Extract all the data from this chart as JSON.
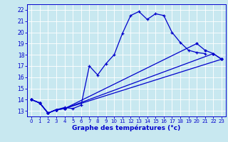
{
  "title": "Graphe des températures (°c)",
  "bg_color": "#c8e8f0",
  "line_color": "#0000cc",
  "grid_color": "#ffffff",
  "xlim": [
    -0.5,
    23.5
  ],
  "ylim": [
    12.5,
    22.5
  ],
  "xticks": [
    0,
    1,
    2,
    3,
    4,
    5,
    6,
    7,
    8,
    9,
    10,
    11,
    12,
    13,
    14,
    15,
    16,
    17,
    18,
    19,
    20,
    21,
    22,
    23
  ],
  "yticks": [
    13,
    14,
    15,
    16,
    17,
    18,
    19,
    20,
    21,
    22
  ],
  "line1_x": [
    0,
    1,
    2,
    3,
    4,
    5,
    6,
    7,
    8,
    9,
    10,
    11,
    12,
    13,
    14,
    15,
    16,
    17,
    18,
    19,
    20,
    21
  ],
  "line1_y": [
    14.0,
    13.7,
    12.8,
    13.1,
    13.3,
    13.2,
    13.5,
    17.0,
    16.2,
    17.2,
    18.0,
    19.9,
    21.5,
    21.85,
    21.15,
    21.65,
    21.5,
    20.0,
    19.1,
    18.4,
    18.2,
    18.1
  ],
  "line2_x": [
    0,
    1,
    2,
    3,
    4,
    22,
    23
  ],
  "line2_y": [
    14.0,
    13.7,
    12.8,
    13.1,
    13.2,
    18.1,
    17.6
  ],
  "line3_x": [
    0,
    1,
    2,
    3,
    4,
    20,
    21,
    22,
    23
  ],
  "line3_y": [
    14.0,
    13.7,
    12.8,
    13.1,
    13.2,
    19.0,
    18.4,
    18.1,
    17.6
  ],
  "line4_x": [
    0,
    1,
    2,
    3,
    4,
    23
  ],
  "line4_y": [
    14.0,
    13.7,
    12.8,
    13.1,
    13.2,
    17.6
  ]
}
